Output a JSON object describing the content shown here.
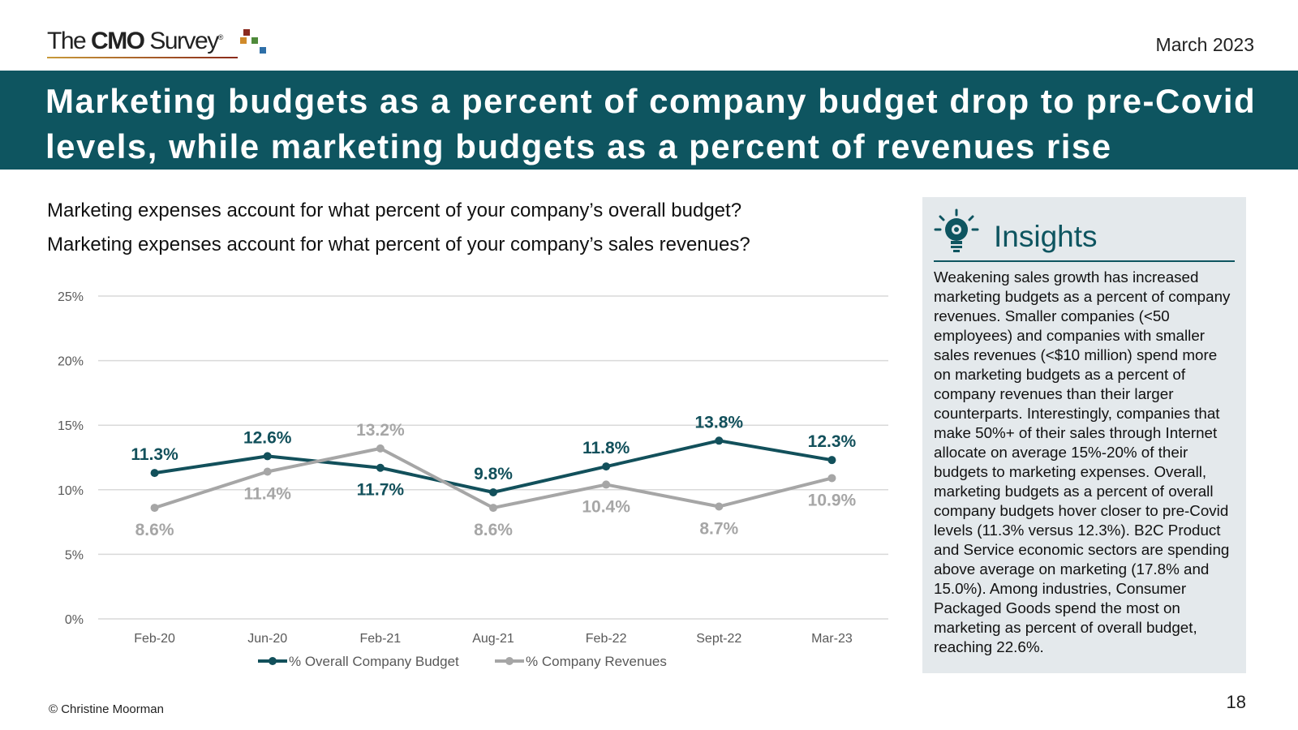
{
  "header": {
    "logo_pre": "The ",
    "logo_bold": "CMO",
    "logo_post": " Survey",
    "logo_reg": "®",
    "date": "March 2023"
  },
  "banner": {
    "title": "Marketing budgets as a percent of company budget drop to pre-Covid levels, while marketing budgets as a percent of revenues rise"
  },
  "questions": {
    "q1": "Marketing expenses account for what percent of your company’s overall budget?",
    "q2": "Marketing expenses account for what percent of your company’s sales revenues?"
  },
  "colors": {
    "teal": "#0e5560",
    "series1": "#12505b",
    "series2": "#a6a6a6",
    "grid": "#d9d9d9",
    "panel": "#e4e9ec"
  },
  "chart_data": {
    "type": "line",
    "categories": [
      "Feb-20",
      "Jun-20",
      "Feb-21",
      "Aug-21",
      "Feb-22",
      "Sept-22",
      "Mar-23"
    ],
    "series": [
      {
        "name": "% Overall Company Budget",
        "values": [
          11.3,
          12.6,
          11.7,
          9.8,
          11.8,
          13.8,
          12.3
        ],
        "labels": [
          "11.3%",
          "12.6%",
          "11.7%",
          "9.8%",
          "11.8%",
          "13.8%",
          "12.3%"
        ],
        "label_pos": [
          "above",
          "above",
          "below",
          "above",
          "above",
          "above",
          "above"
        ]
      },
      {
        "name": "% Company Revenues",
        "values": [
          8.6,
          11.4,
          13.2,
          8.6,
          10.4,
          8.7,
          10.9
        ],
        "labels": [
          "8.6%",
          "11.4%",
          "13.2%",
          "8.6%",
          "10.4%",
          "8.7%",
          "10.9%"
        ],
        "label_pos": [
          "below",
          "below",
          "above",
          "below",
          "below",
          "below",
          "below"
        ]
      }
    ],
    "yticks": [
      "0%",
      "5%",
      "10%",
      "15%",
      "20%",
      "25%"
    ],
    "ylim": [
      0,
      25
    ],
    "grid": true,
    "legend": "bottom"
  },
  "insights": {
    "heading": "Insights",
    "body": "Weakening sales growth has increased marketing budgets as a percent of company revenues. Smaller companies (<50 employees) and companies with smaller sales revenues (<$10 million) spend more on marketing budgets as a percent of company revenues than their larger counterparts. Interestingly, companies that make 50%+ of their sales through Internet allocate on average 15%-20% of their budgets to marketing expenses. Overall, marketing budgets as a percent of overall company budgets hover closer to pre-Covid levels (11.3% versus 12.3%). B2C Product and Service economic sectors are spending above average on marketing (17.8% and 15.0%). Among industries, Consumer Packaged Goods spend the most on marketing as percent of overall budget, reaching 22.6%."
  },
  "footer": {
    "copyright": "© Christine Moorman",
    "page": "18"
  }
}
